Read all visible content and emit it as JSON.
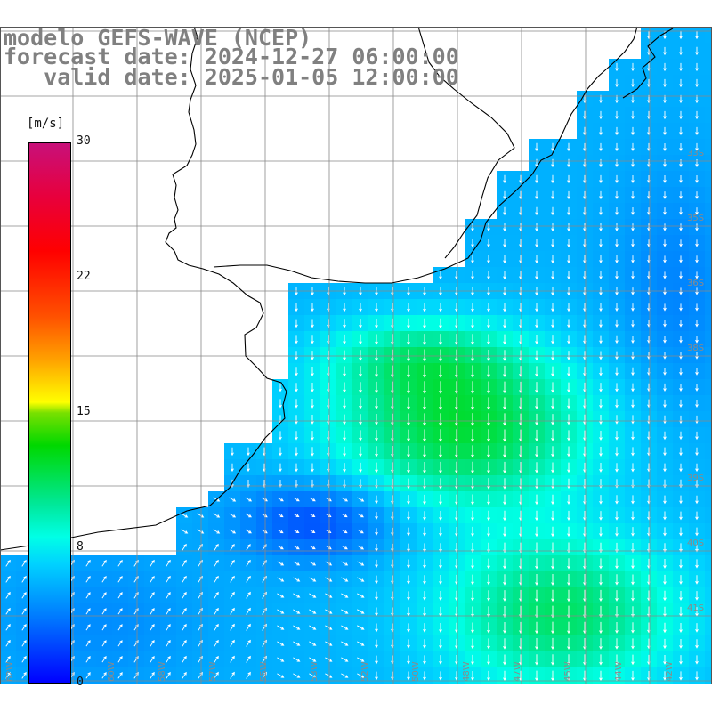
{
  "title": {
    "line1": "modelo GEFS-WAVE (NCEP)",
    "line2": "forecast date: 2024-12-27 06:00:00",
    "line3": "   valid date: 2025-01-05 12:00:00"
  },
  "colorbar": {
    "unit": "[m/s]",
    "min": 0,
    "max": 30,
    "ticks": [
      {
        "label": "30",
        "value": 30
      },
      {
        "label": "22",
        "value": 22.5
      },
      {
        "label": "15",
        "value": 15
      },
      {
        "label": "8",
        "value": 7.5
      },
      {
        "label": "0",
        "value": 0
      }
    ]
  },
  "map": {
    "extent": {
      "lon": [
        -64,
        -42
      ],
      "lat": [
        -42,
        -20
      ]
    },
    "grid_step_deg": 2,
    "land_color": "#ffffff",
    "grid_color": "#888888",
    "lat_labels": [
      "33S",
      "35S",
      "36S",
      "38S",
      "39S",
      "40S",
      "41S"
    ],
    "lon_labels": [
      "62W",
      "61W",
      "60W",
      "58W",
      "57W",
      "55W",
      "53W",
      "52W",
      "50W",
      "48W",
      "47W",
      "45W",
      "44W",
      "42W"
    ]
  },
  "colors": {
    "title": "#808080",
    "arrow": "#ffffff"
  }
}
